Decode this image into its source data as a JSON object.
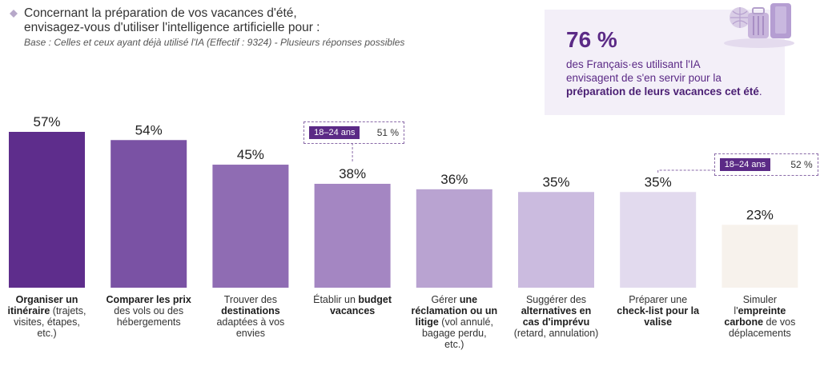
{
  "header": {
    "title_line1": "Concernant la préparation de vos vacances d'été,",
    "title_line2": "envisagez-vous d'utiliser l'intelligence artificielle pour :",
    "base": "Base : Celles et ceux ayant déjà utilisé l'IA (Effectif : 9324) - Plusieurs réponses possibles"
  },
  "callout": {
    "value": "76 %",
    "text_line1": "des Français·es utilisant l'IA",
    "text_line2": "envisagent de s'en servir pour la",
    "text_bold": "préparation de leurs vacances cet été",
    "text_end": "."
  },
  "chart_data": {
    "type": "bar",
    "categories": [
      "Organiser un itinéraire (trajets, visites, étapes, etc.)",
      "Comparer les prix des vols ou des hébergements",
      "Trouver des destinations adaptées à vos envies",
      "Établir un budget vacances",
      "Gérer une réclamation ou un litige (vol annulé, bagage perdu, etc.)",
      "Suggérer des alternatives en cas d'imprévu (retard, annulation)",
      "Préparer une check-list pour la valise",
      "Simuler l'empreinte carbone de vos déplacements"
    ],
    "values": [
      57,
      54,
      45,
      38,
      36,
      35,
      35,
      23
    ],
    "value_labels": [
      "57%",
      "54%",
      "45%",
      "38%",
      "36%",
      "35%",
      "35%",
      "23%"
    ],
    "colors": [
      "#5e2d8c",
      "#7a52a4",
      "#8f6cb3",
      "#a486c2",
      "#b9a3d1",
      "#cbbbdf",
      "#e2daee",
      "#f7f2ec"
    ],
    "ylim": [
      0,
      60
    ],
    "annotations": [
      {
        "category_index": 3,
        "tag": "18–24 ans",
        "value": "51 %"
      },
      {
        "category_index": 6,
        "tag": "18–24 ans",
        "value": "52 %"
      }
    ]
  },
  "labels": [
    {
      "parts": [
        {
          "b": "Organiser un itinéraire"
        },
        {
          "t": " (trajets, visites, étapes, etc.)"
        }
      ]
    },
    {
      "parts": [
        {
          "b": "Comparer les prix"
        },
        {
          "t": " des vols ou des hébergements"
        }
      ]
    },
    {
      "parts": [
        {
          "t": "Trouver des "
        },
        {
          "b": "destinations"
        },
        {
          "t": " adaptées à vos envies"
        }
      ]
    },
    {
      "parts": [
        {
          "t": "Établir un "
        },
        {
          "b": "budget vacances"
        }
      ]
    },
    {
      "parts": [
        {
          "t": "Gérer "
        },
        {
          "b": "une réclamation ou un litige"
        },
        {
          "t": " (vol annulé, bagage perdu, etc.)"
        }
      ]
    },
    {
      "parts": [
        {
          "t": "Suggérer des "
        },
        {
          "b": "alternatives en cas d'imprévu"
        },
        {
          "t": " (retard, annulation)"
        }
      ]
    },
    {
      "parts": [
        {
          "t": "Préparer une "
        },
        {
          "b": "check-list pour la valise"
        }
      ]
    },
    {
      "parts": [
        {
          "t": "Simuler l'"
        },
        {
          "b": "empreinte carbone"
        },
        {
          "t": " de vos déplacements"
        }
      ]
    }
  ],
  "icons": {
    "title": "rhombus-icon",
    "deco": "vacation-suitcase-illustration"
  }
}
